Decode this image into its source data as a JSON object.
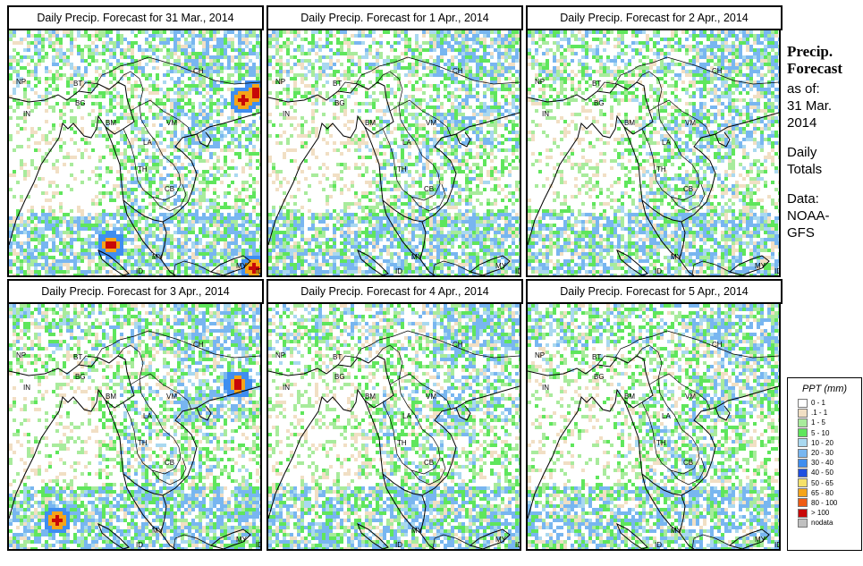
{
  "panels": [
    {
      "title": "Daily Precip. Forecast for  31 Mar., 2014",
      "seed": 11,
      "hot": [
        [
          268,
          108
        ],
        [
          282,
          100
        ],
        [
          120,
          270
        ],
        [
          280,
          296
        ]
      ]
    },
    {
      "title": "Daily Precip. Forecast for  1 Apr., 2014",
      "seed": 23,
      "hot": [
        [
          130,
          280
        ],
        [
          160,
          285
        ]
      ]
    },
    {
      "title": "Daily Precip. Forecast for  2 Apr., 2014",
      "seed": 37,
      "hot": [
        [
          250,
          118
        ],
        [
          265,
          120
        ],
        [
          268,
          300
        ]
      ]
    },
    {
      "title": "Daily Precip. Forecast for  3 Apr., 2014",
      "seed": 41,
      "hot": [
        [
          60,
          578
        ],
        [
          262,
          426
        ]
      ]
    },
    {
      "title": "Daily Precip. Forecast for  4 Apr., 2014",
      "seed": 53,
      "hot": [
        [
          72,
          420
        ],
        [
          140,
          600
        ],
        [
          250,
          604
        ]
      ]
    },
    {
      "title": "Daily Precip. Forecast for  5 Apr., 2014",
      "seed": 67,
      "hot": [
        [
          112,
          588
        ]
      ]
    }
  ],
  "country_labels": {
    "NP": "NP",
    "BT": "BT",
    "BG": "BG",
    "IN": "IN",
    "BM": "BM",
    "CH": "CH",
    "VM": "VM",
    "LA": "LA",
    "TH": "TH",
    "CB": "CB",
    "MY": "MY",
    "ID": "ID",
    "MY2": "MY",
    "ID2": "ID"
  },
  "sidebar": {
    "title_line1": "Precip.",
    "title_line2": "Forecast",
    "asof_label": "as of:",
    "asof_line1": "31 Mar.",
    "asof_line2": "2014",
    "daily_line1": "Daily",
    "daily_line2": "Totals",
    "data_line1": "Data:",
    "data_line2": "NOAA-",
    "data_line3": "GFS"
  },
  "legend": {
    "title": "PPT (mm)",
    "items": [
      {
        "label": "0 - 1",
        "color": "#ffffff"
      },
      {
        "label": ".1 - 1",
        "color": "#f1dfc4"
      },
      {
        "label": "1 - 5",
        "color": "#a8eb9c"
      },
      {
        "label": "5 - 10",
        "color": "#5fe65c"
      },
      {
        "label": "10 - 20",
        "color": "#a9d8f0"
      },
      {
        "label": "20 - 30",
        "color": "#78b6f0"
      },
      {
        "label": "30 - 40",
        "color": "#3f8ef0"
      },
      {
        "label": "40 - 50",
        "color": "#1f4fe0"
      },
      {
        "label": "50 - 65",
        "color": "#f5e169"
      },
      {
        "label": "65 - 80",
        "color": "#f5a419"
      },
      {
        "label": "80 - 100",
        "color": "#ef5b13"
      },
      {
        "label": "> 100",
        "color": "#c80808"
      },
      {
        "label": "nodata",
        "color": "#c0c0c0"
      }
    ]
  }
}
